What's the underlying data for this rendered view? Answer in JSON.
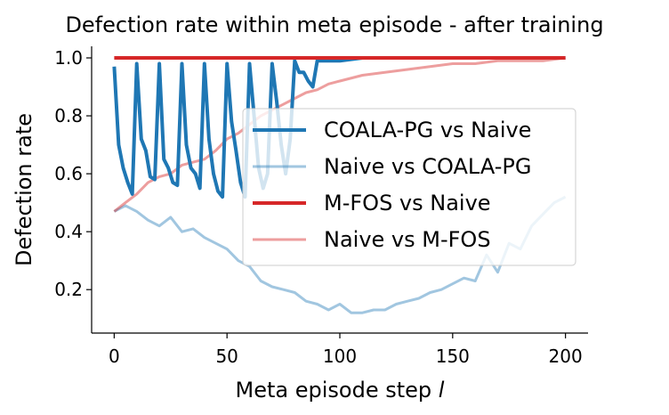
{
  "chart_data": {
    "type": "line",
    "title": "Defection rate within meta episode - after training",
    "xlabel": "Meta episode step",
    "xlabel_var": "l",
    "ylabel": "Defection rate",
    "xlim": [
      -10,
      210
    ],
    "ylim": [
      0.05,
      1.04
    ],
    "xticks": [
      0,
      50,
      100,
      150,
      200
    ],
    "yticks": [
      0.2,
      0.4,
      0.6,
      0.8,
      1.0
    ],
    "xtick_labels": [
      "0",
      "50",
      "100",
      "150",
      "200"
    ],
    "ytick_labels": [
      "0.2",
      "0.4",
      "0.6",
      "0.8",
      "1.0"
    ],
    "grid": false,
    "legend_position": "center-right",
    "series": [
      {
        "name": "COALA-PG vs Naive",
        "color": "#1f77b4",
        "opacity": 1.0,
        "width": 4,
        "x": [
          0,
          2,
          4,
          6,
          8,
          10,
          12,
          14,
          16,
          18,
          20,
          22,
          24,
          26,
          28,
          30,
          32,
          34,
          36,
          38,
          40,
          42,
          44,
          46,
          48,
          50,
          52,
          54,
          56,
          58,
          60,
          62,
          64,
          66,
          68,
          70,
          72,
          74,
          76,
          78,
          80,
          82,
          84,
          86,
          88,
          90,
          92,
          96,
          100,
          110,
          120,
          130,
          140,
          150,
          160,
          170,
          180,
          190,
          200
        ],
        "y": [
          0.97,
          0.7,
          0.62,
          0.57,
          0.53,
          0.98,
          0.72,
          0.68,
          0.59,
          0.58,
          0.98,
          0.65,
          0.62,
          0.57,
          0.56,
          0.98,
          0.7,
          0.62,
          0.6,
          0.55,
          0.98,
          0.72,
          0.6,
          0.54,
          0.52,
          0.98,
          0.78,
          0.68,
          0.57,
          0.52,
          0.98,
          0.8,
          0.62,
          0.55,
          0.6,
          0.98,
          0.85,
          0.7,
          0.6,
          0.72,
          0.99,
          0.95,
          0.95,
          0.92,
          0.9,
          0.99,
          0.99,
          0.99,
          0.99,
          1.0,
          1.0,
          1.0,
          1.0,
          1.0,
          1.0,
          1.0,
          1.0,
          1.0,
          1.0
        ]
      },
      {
        "name": "Naive vs COALA-PG",
        "color": "#1f77b4",
        "opacity": 0.42,
        "width": 3,
        "x": [
          0,
          5,
          10,
          15,
          20,
          25,
          30,
          35,
          40,
          45,
          50,
          55,
          60,
          65,
          70,
          75,
          80,
          85,
          90,
          95,
          100,
          105,
          110,
          115,
          120,
          125,
          130,
          135,
          140,
          145,
          150,
          155,
          160,
          165,
          170,
          175,
          180,
          185,
          190,
          195,
          200
        ],
        "y": [
          0.47,
          0.49,
          0.47,
          0.44,
          0.42,
          0.45,
          0.4,
          0.41,
          0.38,
          0.36,
          0.34,
          0.3,
          0.28,
          0.23,
          0.21,
          0.2,
          0.19,
          0.16,
          0.15,
          0.13,
          0.15,
          0.12,
          0.12,
          0.13,
          0.13,
          0.15,
          0.16,
          0.17,
          0.19,
          0.2,
          0.22,
          0.24,
          0.23,
          0.32,
          0.26,
          0.36,
          0.34,
          0.42,
          0.46,
          0.5,
          0.52
        ]
      },
      {
        "name": "M-FOS vs Naive",
        "color": "#d62728",
        "opacity": 1.0,
        "width": 4,
        "x": [
          0,
          200
        ],
        "y": [
          1.0,
          1.0
        ]
      },
      {
        "name": "Naive vs M-FOS",
        "color": "#d62728",
        "opacity": 0.45,
        "width": 3,
        "x": [
          0,
          5,
          10,
          15,
          20,
          25,
          30,
          35,
          40,
          45,
          50,
          55,
          60,
          65,
          70,
          75,
          80,
          85,
          90,
          95,
          100,
          110,
          120,
          130,
          140,
          150,
          160,
          170,
          180,
          190,
          200
        ],
        "y": [
          0.47,
          0.5,
          0.53,
          0.57,
          0.59,
          0.6,
          0.63,
          0.64,
          0.65,
          0.68,
          0.72,
          0.74,
          0.77,
          0.8,
          0.82,
          0.84,
          0.86,
          0.88,
          0.89,
          0.91,
          0.92,
          0.94,
          0.95,
          0.96,
          0.97,
          0.98,
          0.98,
          0.99,
          0.99,
          0.99,
          1.0
        ]
      }
    ]
  }
}
